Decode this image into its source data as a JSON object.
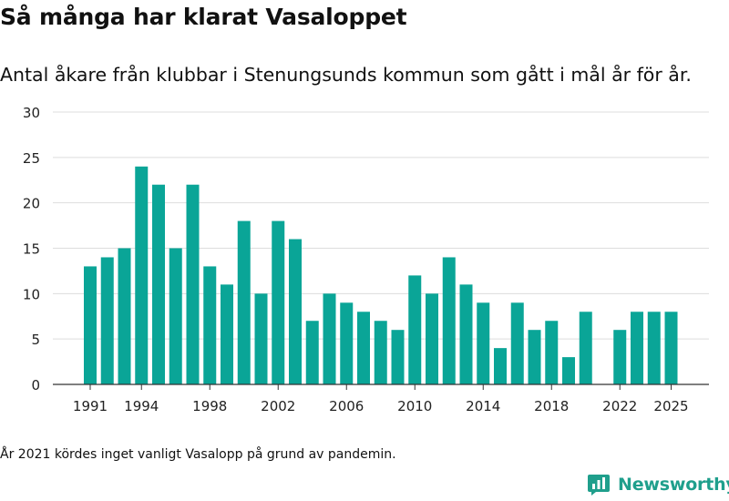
{
  "header": {
    "title": "Så många har klarat Vasaloppet",
    "subtitle": "Antal åkare från klubbar i Stenungsunds kommun som gått i mål år för år."
  },
  "footnote": "År 2021 kördes inget vanligt Vasalopp på grund av pandemin.",
  "brand": {
    "name": "Newsworthy",
    "icon": "newsworthy-logo-icon"
  },
  "colors": {
    "bar": "#0aa597",
    "grid": "#dddddd",
    "axis": "#333333",
    "brand": "#1f9f8c"
  },
  "chart_data": {
    "type": "bar",
    "title": "Så många har klarat Vasaloppet",
    "xlabel": "",
    "ylabel": "",
    "ylim": [
      0,
      30
    ],
    "yticks": [
      0,
      5,
      10,
      15,
      20,
      25,
      30
    ],
    "xticks": [
      1991,
      1994,
      1998,
      2002,
      2006,
      2010,
      2014,
      2018,
      2022,
      2025
    ],
    "grid": true,
    "categories": [
      1991,
      1992,
      1993,
      1994,
      1995,
      1996,
      1997,
      1998,
      1999,
      2000,
      2001,
      2002,
      2003,
      2004,
      2005,
      2006,
      2007,
      2008,
      2009,
      2010,
      2011,
      2012,
      2013,
      2014,
      2015,
      2016,
      2017,
      2018,
      2019,
      2020,
      2021,
      2022,
      2023,
      2024,
      2025
    ],
    "values": [
      13,
      14,
      15,
      24,
      22,
      15,
      22,
      13,
      11,
      18,
      10,
      18,
      16,
      7,
      10,
      9,
      8,
      7,
      6,
      12,
      10,
      14,
      11,
      9,
      4,
      9,
      6,
      7,
      3,
      8,
      null,
      6,
      8,
      8,
      8
    ]
  }
}
